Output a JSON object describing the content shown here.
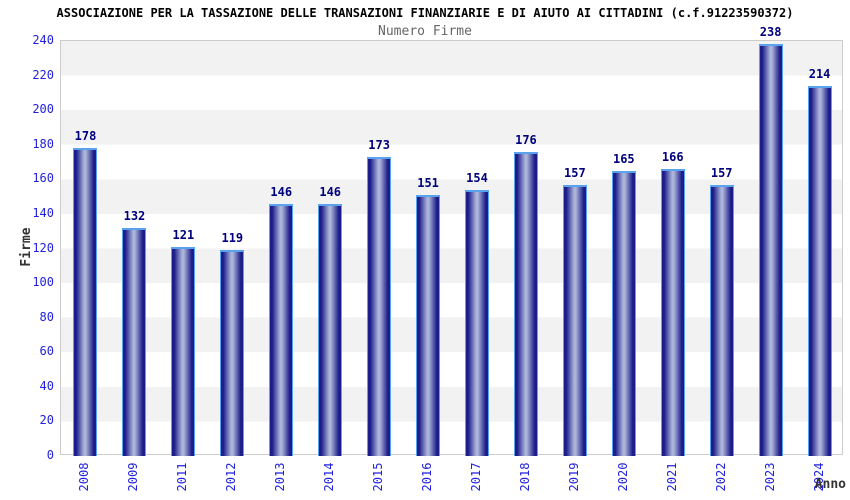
{
  "title": "ASSOCIAZIONE PER LA TASSAZIONE DELLE TRANSAZIONI FINANZIARIE E DI AIUTO AI CITTADINI (c.f.91223590372)",
  "subtitle": "Numero Firme",
  "chart_data": {
    "type": "bar",
    "title": "ASSOCIAZIONE PER LA TASSAZIONE DELLE TRANSAZIONI FINANZIARIE E DI AIUTO AI CITTADINI (c.f.91223590372)",
    "subtitle": "Numero Firme",
    "categories": [
      "2008",
      "2009",
      "2011",
      "2012",
      "2013",
      "2014",
      "2015",
      "2016",
      "2017",
      "2018",
      "2019",
      "2020",
      "2021",
      "2022",
      "2023",
      "2024"
    ],
    "values": [
      178,
      132,
      121,
      119,
      146,
      146,
      173,
      151,
      154,
      176,
      157,
      165,
      166,
      157,
      238,
      214
    ],
    "xlabel": "Anno",
    "ylabel": "Firme",
    "ylim": [
      0,
      240
    ],
    "ytick_step": 20,
    "yticks": [
      0,
      20,
      40,
      60,
      80,
      100,
      120,
      140,
      160,
      180,
      200,
      220,
      240
    ],
    "grid": "alternating-horizontal-bands",
    "legend": "none",
    "bar_value_labels": true,
    "xtick_rotation": -90,
    "colors": {
      "bar_edge": "#1c1c8a",
      "bar_mid": "#9ba3d0",
      "bar_highlight": "#b4badd",
      "bar_outline": "#58a2ee",
      "tick_label": "#2222dd",
      "value_label": "#00007d",
      "axis_title": "#333333",
      "band_gray": "#f2f2f2",
      "band_white": "#ffffff",
      "plot_border": "#cccccc",
      "title_color": "#000000",
      "subtitle_color": "#666666"
    }
  }
}
